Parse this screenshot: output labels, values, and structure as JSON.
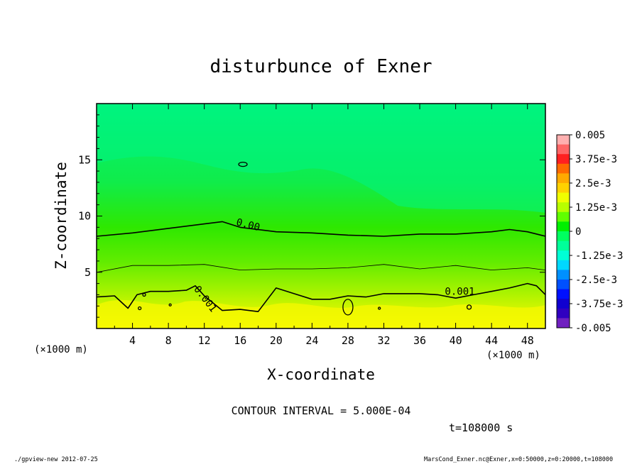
{
  "chart_data": {
    "type": "heatmap",
    "title": "disturbunce of Exner",
    "xlabel": "X-coordinate",
    "ylabel": "Z-coordinate",
    "x_unit_label": "(×1000 m)",
    "y_unit_label": "(×1000 m)",
    "xlim": [
      0,
      50
    ],
    "ylim": [
      0,
      20
    ],
    "x_ticks": [
      4,
      8,
      12,
      16,
      20,
      24,
      28,
      32,
      36,
      40,
      44,
      48
    ],
    "y_ticks": [
      5,
      10,
      15
    ],
    "colorbar": {
      "min": -0.005,
      "max": 0.005,
      "labels": [
        "0.005",
        "3.75e-3",
        "2.5e-3",
        "1.25e-3",
        "0",
        "-1.25e-3",
        "-2.5e-3",
        "-3.75e-3",
        "-0.005"
      ],
      "colors": [
        "#ffb0b0",
        "#ff6666",
        "#ff2020",
        "#ff6a00",
        "#ffaa00",
        "#ffd200",
        "#f0ff00",
        "#b8ff00",
        "#60ff00",
        "#00f000",
        "#00ff60",
        "#00ff9a",
        "#00ffd6",
        "#00d8ff",
        "#0090ff",
        "#0050ff",
        "#0010ff",
        "#1000d0",
        "#3000c0",
        "#7020c0"
      ]
    },
    "contour_lines": [
      {
        "level": "0.00",
        "x": [
          0,
          4,
          8,
          12,
          14,
          16,
          20,
          24,
          28,
          32,
          36,
          40,
          44,
          46,
          48,
          50
        ],
        "y": [
          8.2,
          8.5,
          8.9,
          9.3,
          9.5,
          9.0,
          8.6,
          8.5,
          8.3,
          8.2,
          8.4,
          8.4,
          8.6,
          8.8,
          8.6,
          8.2
        ]
      },
      {
        "level": "0.001",
        "x": [
          0,
          2,
          3.5,
          4.5,
          6,
          8,
          10,
          11,
          12,
          14,
          16,
          18,
          20,
          22,
          24,
          26,
          28,
          30,
          32,
          34,
          36,
          38,
          40,
          42,
          44,
          46,
          48,
          49,
          50
        ],
        "y": [
          2.8,
          2.9,
          1.8,
          3.0,
          3.3,
          3.3,
          3.4,
          3.8,
          2.9,
          1.6,
          1.7,
          1.5,
          3.6,
          3.1,
          2.6,
          2.6,
          2.9,
          2.8,
          3.1,
          3.1,
          3.1,
          3.0,
          2.7,
          3.0,
          3.3,
          3.6,
          4.0,
          3.8,
          3.0
        ]
      },
      {
        "level": "5.0e-4",
        "x": [
          0,
          4,
          8,
          12,
          16,
          20,
          24,
          28,
          32,
          36,
          40,
          44,
          48,
          50
        ],
        "y": [
          5.0,
          5.6,
          5.6,
          5.7,
          5.2,
          5.3,
          5.3,
          5.4,
          5.7,
          5.3,
          5.6,
          5.2,
          5.4,
          5.2
        ]
      }
    ],
    "contour_interval_text": "CONTOUR INTERVAL = 5.000E-04",
    "time_text": "t=108000 s"
  },
  "footer": {
    "left": "./gpview-new  2012-07-25",
    "right": "MarsCond_Exner.nc@Exner,x=0:50000,z=0:20000,t=108000"
  },
  "colors": {
    "background": "#ffffff",
    "frame": "#000000"
  }
}
